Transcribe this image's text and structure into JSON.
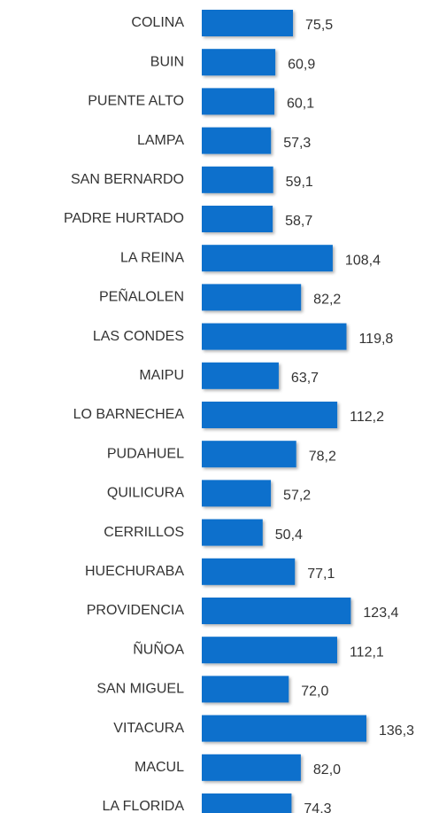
{
  "chart_data": {
    "type": "bar",
    "orientation": "horizontal",
    "color": "#0b6fcc",
    "categories": [
      "COLINA",
      "BUIN",
      "PUENTE ALTO",
      "LAMPA",
      "SAN BERNARDO",
      "PADRE HURTADO",
      "LA REINA",
      "PEÑALOLEN",
      "LAS CONDES",
      "MAIPU",
      "LO BARNECHEA",
      "PUDAHUEL",
      "QUILICURA",
      "CERRILLOS",
      "HUECHURABA",
      "PROVIDENCIA",
      "ÑUÑOA",
      "SAN MIGUEL",
      "VITACURA",
      "MACUL",
      "LA FLORIDA"
    ],
    "values": [
      75.5,
      60.9,
      60.1,
      57.3,
      59.1,
      58.7,
      108.4,
      82.2,
      119.8,
      63.7,
      112.2,
      78.2,
      57.2,
      50.4,
      77.1,
      123.4,
      112.1,
      72.0,
      136.3,
      82.0,
      74.3
    ],
    "value_labels": [
      "75,5",
      "60,9",
      "60,1",
      "57,3",
      "59,1",
      "58,7",
      "108,4",
      "82,2",
      "119,8",
      "63,7",
      "112,2",
      "78,2",
      "57,2",
      "50,4",
      "77,1",
      "123,4",
      "112,1",
      "72,0",
      "136,3",
      "82,0",
      "74,3"
    ]
  }
}
